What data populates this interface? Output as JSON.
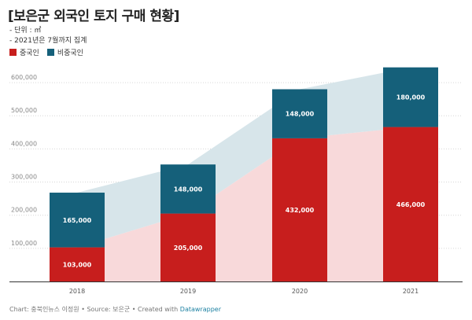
{
  "chart_data": {
    "type": "bar",
    "stacked": true,
    "title": "[보은군 외국인 토지 구매 현황]",
    "notes": [
      "- 단위 : ㎡",
      "- 2021년은 7월까지 집계"
    ],
    "categories": [
      "2018",
      "2019",
      "2020",
      "2021"
    ],
    "series": [
      {
        "name": "중국인",
        "values": [
          103000,
          205000,
          432000,
          466000
        ],
        "color": "#c71e1d",
        "area_color": "#f8d9da"
      },
      {
        "name": "비중국인",
        "values": [
          165000,
          148000,
          148000,
          180000
        ],
        "color": "#15607a",
        "area_color": "#d7e5ea"
      }
    ],
    "data_labels": [
      [
        "103,000",
        "205,000",
        "432,000",
        "466,000"
      ],
      [
        "165,000",
        "148,000",
        "148,000",
        "180,000"
      ]
    ],
    "ylim": [
      0,
      650000
    ],
    "yticks": [
      100000,
      200000,
      300000,
      400000,
      500000,
      600000
    ],
    "ytick_labels": [
      "100,000",
      "200,000",
      "300,000",
      "400,000",
      "500,000",
      "600,000"
    ],
    "grid": true,
    "legend_position": "top-left",
    "xlabel": "",
    "ylabel": ""
  },
  "footer": {
    "prefix": "Chart: 충북인뉴스 이정원 • Source: 보은군 • Created with ",
    "link": "Datawrapper"
  }
}
